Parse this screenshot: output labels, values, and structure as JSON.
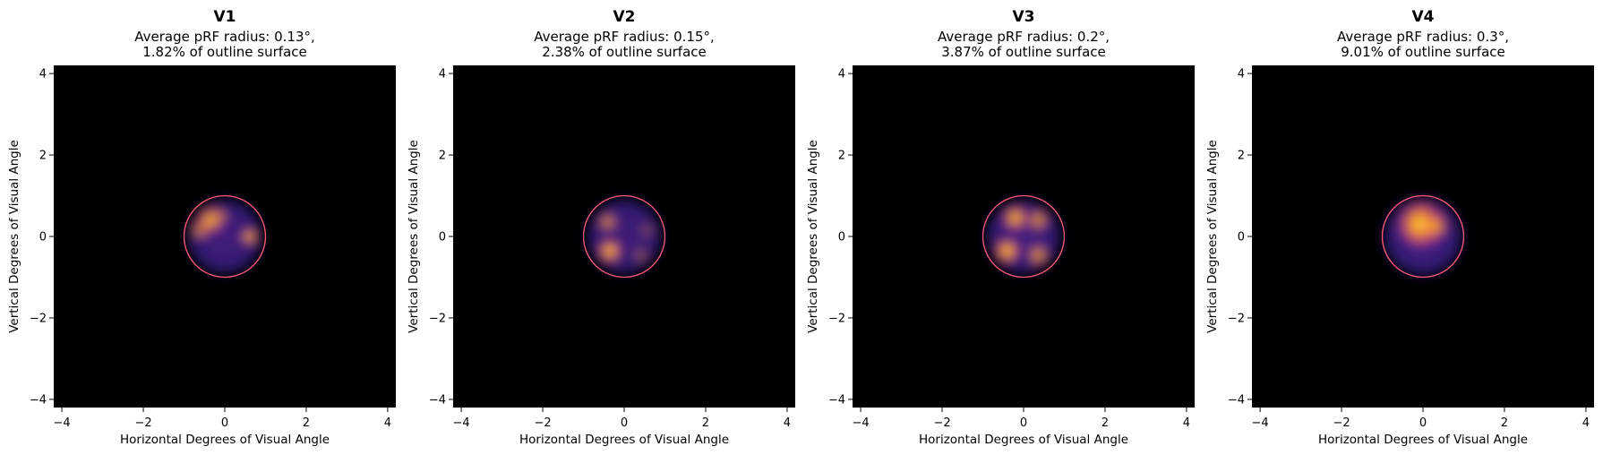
{
  "chart_data": [
    {
      "type": "heatmap",
      "title": "V1",
      "subtitle_lines": [
        "Average pRF radius: 0.13°,",
        "1.82% of outline surface"
      ],
      "xlabel": "Horizontal Degrees of Visual Angle",
      "ylabel": "Vertical Degrees of Visual Angle",
      "xlim": [
        -4.2,
        4.2
      ],
      "ylim": [
        -4.2,
        4.2
      ],
      "x_ticks": [
        -4,
        -2,
        0,
        2,
        4
      ],
      "y_ticks": [
        -4,
        -2,
        0,
        2,
        4
      ],
      "x_tick_labels": [
        "−4",
        "−2",
        "0",
        "2",
        "4"
      ],
      "y_tick_labels": [
        "−4",
        "−2",
        "0",
        "2",
        "4"
      ],
      "outline_circle": {
        "cx": 0,
        "cy": 0,
        "r": 1.0,
        "color": "#ff5c7a"
      },
      "background_color": "#000000",
      "hotspots": [
        {
          "x": 0.0,
          "y": 0.0,
          "r": 1.0,
          "intensity": 0.35
        },
        {
          "x": -0.35,
          "y": 0.4,
          "r": 0.35,
          "intensity": 0.9
        },
        {
          "x": -0.6,
          "y": 0.15,
          "r": 0.25,
          "intensity": 0.7
        },
        {
          "x": 0.6,
          "y": 0.0,
          "r": 0.22,
          "intensity": 0.95
        },
        {
          "x": -0.1,
          "y": 0.5,
          "r": 0.2,
          "intensity": 0.6
        }
      ],
      "grid": false,
      "legend": "none"
    },
    {
      "type": "heatmap",
      "title": "V2",
      "subtitle_lines": [
        "Average pRF radius: 0.15°,",
        "2.38% of outline surface"
      ],
      "xlabel": "Horizontal Degrees of Visual Angle",
      "ylabel": "Vertical Degrees of Visual Angle",
      "xlim": [
        -4.2,
        4.2
      ],
      "ylim": [
        -4.2,
        4.2
      ],
      "x_ticks": [
        -4,
        -2,
        0,
        2,
        4
      ],
      "y_ticks": [
        -4,
        -2,
        0,
        2,
        4
      ],
      "x_tick_labels": [
        "−4",
        "−2",
        "0",
        "2",
        "4"
      ],
      "y_tick_labels": [
        "−4",
        "−2",
        "0",
        "2",
        "4"
      ],
      "outline_circle": {
        "cx": 0,
        "cy": 0,
        "r": 1.0,
        "color": "#ff5c7a"
      },
      "background_color": "#000000",
      "hotspots": [
        {
          "x": 0.0,
          "y": 0.0,
          "r": 1.0,
          "intensity": 0.3
        },
        {
          "x": -0.35,
          "y": -0.35,
          "r": 0.3,
          "intensity": 1.0
        },
        {
          "x": -0.4,
          "y": 0.35,
          "r": 0.25,
          "intensity": 0.75
        },
        {
          "x": 0.4,
          "y": -0.45,
          "r": 0.2,
          "intensity": 0.45
        },
        {
          "x": 0.55,
          "y": 0.15,
          "r": 0.2,
          "intensity": 0.35
        }
      ],
      "grid": false,
      "legend": "none"
    },
    {
      "type": "heatmap",
      "title": "V3",
      "subtitle_lines": [
        "Average pRF radius: 0.2°,",
        "3.87% of outline surface"
      ],
      "xlabel": "Horizontal Degrees of Visual Angle",
      "ylabel": "Vertical Degrees of Visual Angle",
      "xlim": [
        -4.2,
        4.2
      ],
      "ylim": [
        -4.2,
        4.2
      ],
      "x_ticks": [
        -4,
        -2,
        0,
        2,
        4
      ],
      "y_ticks": [
        -4,
        -2,
        0,
        2,
        4
      ],
      "x_tick_labels": [
        "−4",
        "−2",
        "0",
        "2",
        "4"
      ],
      "y_tick_labels": [
        "−4",
        "−2",
        "0",
        "2",
        "4"
      ],
      "outline_circle": {
        "cx": 0,
        "cy": 0,
        "r": 1.0,
        "color": "#ff5c7a"
      },
      "background_color": "#000000",
      "hotspots": [
        {
          "x": 0.0,
          "y": 0.0,
          "r": 1.0,
          "intensity": 0.35
        },
        {
          "x": -0.2,
          "y": 0.45,
          "r": 0.32,
          "intensity": 0.95
        },
        {
          "x": 0.35,
          "y": 0.4,
          "r": 0.28,
          "intensity": 0.8
        },
        {
          "x": -0.4,
          "y": -0.35,
          "r": 0.32,
          "intensity": 1.0
        },
        {
          "x": 0.35,
          "y": -0.45,
          "r": 0.28,
          "intensity": 0.8
        }
      ],
      "grid": false,
      "legend": "none"
    },
    {
      "type": "heatmap",
      "title": "V4",
      "subtitle_lines": [
        "Average pRF radius: 0.3°,",
        "9.01% of outline surface"
      ],
      "xlabel": "Horizontal Degrees of Visual Angle",
      "ylabel": "Vertical Degrees of Visual Angle",
      "xlim": [
        -4.2,
        4.2
      ],
      "ylim": [
        -4.2,
        4.2
      ],
      "x_ticks": [
        -4,
        -2,
        0,
        2,
        4
      ],
      "y_ticks": [
        -4,
        -2,
        0,
        2,
        4
      ],
      "x_tick_labels": [
        "−4",
        "−2",
        "0",
        "2",
        "4"
      ],
      "y_tick_labels": [
        "−4",
        "−2",
        "0",
        "2",
        "4"
      ],
      "outline_circle": {
        "cx": 0,
        "cy": 0,
        "r": 1.0,
        "color": "#ff5c7a"
      },
      "background_color": "#000000",
      "hotspots": [
        {
          "x": 0.0,
          "y": 0.0,
          "r": 1.05,
          "intensity": 0.45
        },
        {
          "x": -0.05,
          "y": 0.3,
          "r": 0.6,
          "intensity": 1.0
        },
        {
          "x": 0.3,
          "y": 0.25,
          "r": 0.35,
          "intensity": 0.7
        }
      ],
      "grid": false,
      "legend": "none"
    }
  ],
  "colormap": [
    "#000000",
    "#1a0b3a",
    "#3b1f8c",
    "#6b2fbf",
    "#c23ea0",
    "#f2593b",
    "#ffa31a",
    "#fff04a"
  ]
}
